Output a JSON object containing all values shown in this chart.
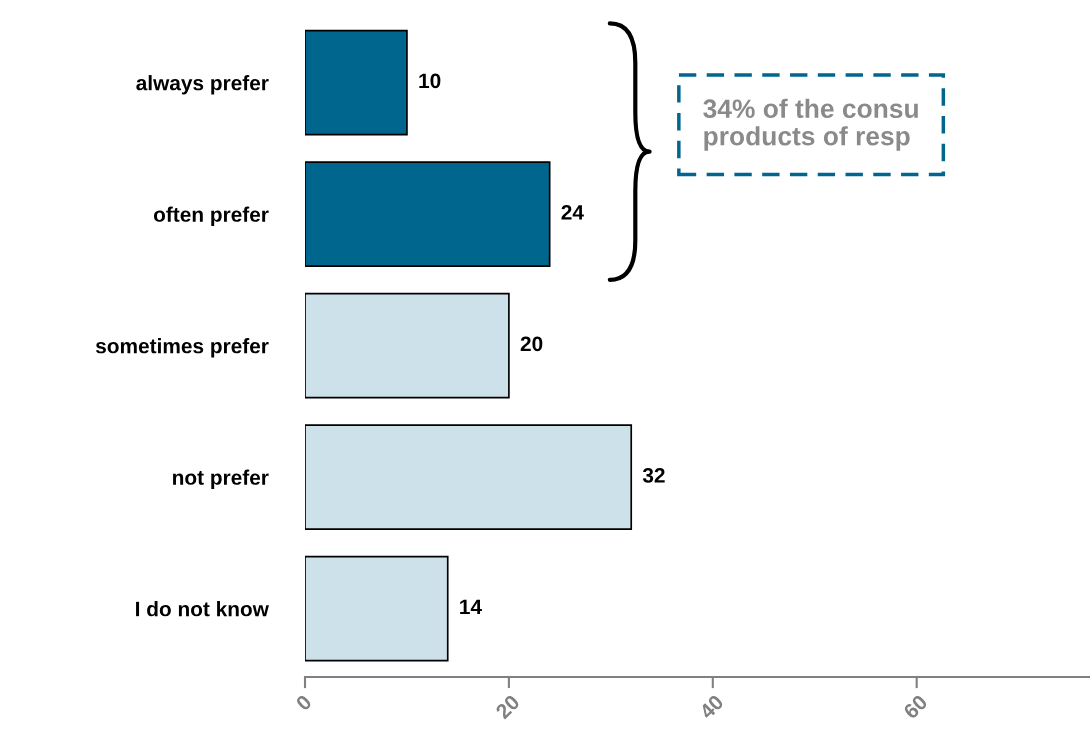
{
  "chart_data": {
    "type": "bar",
    "orientation": "horizontal",
    "categories": [
      "always prefer",
      "often prefer",
      "sometimes prefer",
      "not prefer",
      "I do not know"
    ],
    "values": [
      10,
      24,
      20,
      32,
      14
    ],
    "colors": [
      "#00668e",
      "#00668e",
      "#cde1ea",
      "#cde1ea",
      "#cde1ea"
    ],
    "data_labels": true,
    "xlim": [
      0,
      77
    ],
    "xticks": [
      0,
      20,
      40,
      60
    ],
    "grid": false,
    "annotations": [
      "34% of the consu\nproducts of resp"
    ]
  }
}
